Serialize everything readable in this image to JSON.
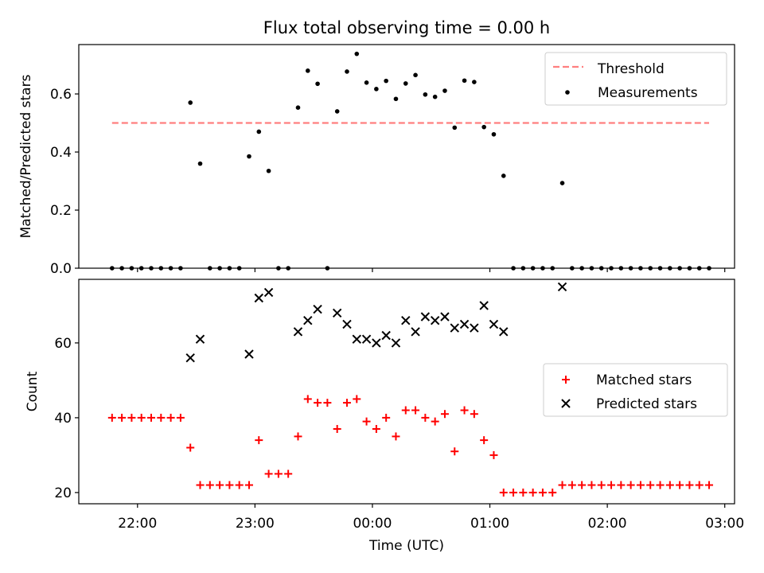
{
  "figure": {
    "title": "Flux total observing time = 0.00 h"
  },
  "chart_data": [
    {
      "type": "scatter",
      "ylabel": "Matched/Predicted stars",
      "xlabel": "",
      "xlim": [
        "21:30",
        "03:05"
      ],
      "ylim": [
        0,
        0.77
      ],
      "yticks": [
        "0.0",
        "0.2",
        "0.4",
        "0.6"
      ],
      "legend": {
        "placement": "top-right",
        "entries": [
          "Threshold",
          "Measurements"
        ]
      },
      "series": [
        {
          "name": "Threshold",
          "style": "dashed-line",
          "color": "#ff7f7f",
          "points": [
            [
              "21:47",
              0.5
            ],
            [
              "02:52",
              0.5
            ]
          ]
        },
        {
          "name": "Measurements",
          "style": "dot",
          "color": "#000000",
          "points": [
            [
              "21:47",
              0
            ],
            [
              "21:52",
              0
            ],
            [
              "21:57",
              0
            ],
            [
              "22:02",
              0
            ],
            [
              "22:07",
              0
            ],
            [
              "22:12",
              0
            ],
            [
              "22:17",
              0
            ],
            [
              "22:22",
              0
            ],
            [
              "22:27",
              0.57
            ],
            [
              "22:32",
              0.36
            ],
            [
              "22:37",
              0
            ],
            [
              "22:42",
              0
            ],
            [
              "22:47",
              0
            ],
            [
              "22:52",
              0
            ],
            [
              "22:57",
              0.385
            ],
            [
              "23:02",
              0.47
            ],
            [
              "23:07",
              0.335
            ],
            [
              "23:12",
              0
            ],
            [
              "23:17",
              0
            ],
            [
              "23:22",
              0.553
            ],
            [
              "23:27",
              0.68
            ],
            [
              "23:32",
              0.635
            ],
            [
              "23:37",
              0
            ],
            [
              "23:42",
              0.54
            ],
            [
              "23:47",
              0.677
            ],
            [
              "23:52",
              0.738
            ],
            [
              "23:57",
              0.639
            ],
            [
              "00:02",
              0.617
            ],
            [
              "00:07",
              0.645
            ],
            [
              "00:12",
              0.583
            ],
            [
              "00:17",
              0.636
            ],
            [
              "00:22",
              0.665
            ],
            [
              "00:27",
              0.598
            ],
            [
              "00:32",
              0.59
            ],
            [
              "00:37",
              0.611
            ],
            [
              "00:42",
              0.484
            ],
            [
              "00:47",
              0.646
            ],
            [
              "00:52",
              0.641
            ],
            [
              "00:57",
              0.486
            ],
            [
              "01:02",
              0.461
            ],
            [
              "01:07",
              0.318
            ],
            [
              "01:12",
              0
            ],
            [
              "01:17",
              0
            ],
            [
              "01:22",
              0
            ],
            [
              "01:27",
              0
            ],
            [
              "01:32",
              0
            ],
            [
              "01:37",
              0.293
            ],
            [
              "01:42",
              0
            ],
            [
              "01:47",
              0
            ],
            [
              "01:52",
              0
            ],
            [
              "01:57",
              0
            ],
            [
              "02:02",
              0
            ],
            [
              "02:07",
              0
            ],
            [
              "02:12",
              0
            ],
            [
              "02:17",
              0
            ],
            [
              "02:22",
              0
            ],
            [
              "02:27",
              0
            ],
            [
              "02:32",
              0
            ],
            [
              "02:37",
              0
            ],
            [
              "02:42",
              0
            ],
            [
              "02:47",
              0
            ],
            [
              "02:52",
              0
            ]
          ]
        }
      ]
    },
    {
      "type": "scatter",
      "ylabel": "Count",
      "xlabel": "Time (UTC)",
      "xlim": [
        "21:30",
        "03:05"
      ],
      "ylim": [
        17,
        77
      ],
      "yticks": [
        "20",
        "40",
        "60"
      ],
      "xticks": [
        "22:00",
        "23:00",
        "00:00",
        "01:00",
        "02:00",
        "03:00"
      ],
      "legend": {
        "placement": "center-right",
        "entries": [
          "Matched stars",
          "Predicted stars"
        ]
      },
      "series": [
        {
          "name": "Matched stars",
          "style": "plus",
          "color": "#ff0000",
          "points": [
            [
              "21:47",
              40
            ],
            [
              "21:52",
              40
            ],
            [
              "21:57",
              40
            ],
            [
              "22:02",
              40
            ],
            [
              "22:07",
              40
            ],
            [
              "22:12",
              40
            ],
            [
              "22:17",
              40
            ],
            [
              "22:22",
              40
            ],
            [
              "22:27",
              32
            ],
            [
              "22:32",
              22
            ],
            [
              "22:37",
              22
            ],
            [
              "22:42",
              22
            ],
            [
              "22:47",
              22
            ],
            [
              "22:52",
              22
            ],
            [
              "22:57",
              22
            ],
            [
              "23:02",
              34
            ],
            [
              "23:07",
              25
            ],
            [
              "23:12",
              25
            ],
            [
              "23:17",
              25
            ],
            [
              "23:22",
              35
            ],
            [
              "23:27",
              45
            ],
            [
              "23:32",
              44
            ],
            [
              "23:37",
              44
            ],
            [
              "23:42",
              37
            ],
            [
              "23:47",
              44
            ],
            [
              "23:52",
              45
            ],
            [
              "23:57",
              39
            ],
            [
              "00:02",
              37
            ],
            [
              "00:07",
              40
            ],
            [
              "00:12",
              35
            ],
            [
              "00:17",
              42
            ],
            [
              "00:22",
              42
            ],
            [
              "00:27",
              40
            ],
            [
              "00:32",
              39
            ],
            [
              "00:37",
              41
            ],
            [
              "00:42",
              31
            ],
            [
              "00:47",
              42
            ],
            [
              "00:52",
              41
            ],
            [
              "00:57",
              34
            ],
            [
              "01:02",
              30
            ],
            [
              "01:07",
              20
            ],
            [
              "01:12",
              20
            ],
            [
              "01:17",
              20
            ],
            [
              "01:22",
              20
            ],
            [
              "01:27",
              20
            ],
            [
              "01:32",
              20
            ],
            [
              "01:37",
              22
            ],
            [
              "01:42",
              22
            ],
            [
              "01:47",
              22
            ],
            [
              "01:52",
              22
            ],
            [
              "01:57",
              22
            ],
            [
              "02:02",
              22
            ],
            [
              "02:07",
              22
            ],
            [
              "02:12",
              22
            ],
            [
              "02:17",
              22
            ],
            [
              "02:22",
              22
            ],
            [
              "02:27",
              22
            ],
            [
              "02:32",
              22
            ],
            [
              "02:37",
              22
            ],
            [
              "02:42",
              22
            ],
            [
              "02:47",
              22
            ],
            [
              "02:52",
              22
            ]
          ]
        },
        {
          "name": "Predicted stars",
          "style": "x",
          "color": "#000000",
          "points": [
            [
              "22:27",
              56
            ],
            [
              "22:32",
              61
            ],
            [
              "22:57",
              57
            ],
            [
              "23:02",
              72
            ],
            [
              "23:07",
              73.5
            ],
            [
              "23:22",
              63
            ],
            [
              "23:27",
              66
            ],
            [
              "23:32",
              69
            ],
            [
              "23:42",
              68
            ],
            [
              "23:47",
              65
            ],
            [
              "23:52",
              61
            ],
            [
              "23:57",
              61
            ],
            [
              "00:02",
              60
            ],
            [
              "00:07",
              62
            ],
            [
              "00:12",
              60
            ],
            [
              "00:17",
              66
            ],
            [
              "00:22",
              63
            ],
            [
              "00:27",
              67
            ],
            [
              "00:32",
              66
            ],
            [
              "00:37",
              67
            ],
            [
              "00:42",
              64
            ],
            [
              "00:47",
              65
            ],
            [
              "00:52",
              64
            ],
            [
              "00:57",
              70
            ],
            [
              "01:02",
              65
            ],
            [
              "01:07",
              63
            ],
            [
              "01:37",
              75
            ]
          ]
        }
      ]
    }
  ]
}
